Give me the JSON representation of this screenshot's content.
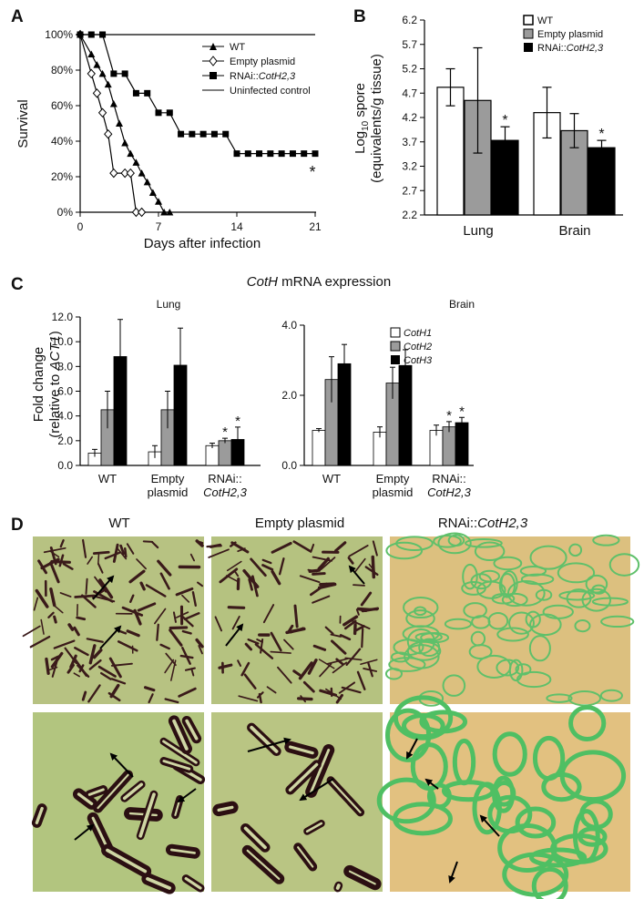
{
  "panels": {
    "a": "A",
    "b": "B",
    "c": "C",
    "d": "D"
  },
  "chart_data": [
    {
      "panel": "A",
      "type": "line",
      "xlabel": "Days after infection",
      "ylabel": "Survival",
      "xticks": [
        "0",
        "7",
        "14",
        "21"
      ],
      "yticks": [
        "0%",
        "20%",
        "40%",
        "60%",
        "80%",
        "100%"
      ],
      "xlim": [
        0,
        21
      ],
      "ylim": [
        0,
        100
      ],
      "annotation": "*",
      "series": [
        {
          "name": "WT",
          "marker": "triangle",
          "x": [
            0,
            1,
            1.5,
            2,
            2.5,
            3,
            3.5,
            4,
            4.5,
            5,
            5.5,
            6,
            6.5,
            7,
            7.5,
            8
          ],
          "y": [
            100,
            89,
            83,
            78,
            72,
            61,
            50,
            39,
            33,
            28,
            22,
            17,
            11,
            6,
            0,
            0
          ]
        },
        {
          "name": "Empty plasmid",
          "marker": "diamond",
          "x": [
            0,
            1,
            1.5,
            2,
            2.5,
            3,
            4,
            4.5,
            5,
            5.5
          ],
          "y": [
            100,
            78,
            67,
            56,
            44,
            22,
            22,
            22,
            0,
            0
          ]
        },
        {
          "name": "RNAi::CotH2,3",
          "marker": "square",
          "x": [
            0,
            1,
            2,
            3,
            4,
            5,
            6,
            7,
            8,
            9,
            10,
            11,
            12,
            13,
            14,
            15,
            16,
            17,
            18,
            19,
            20,
            21
          ],
          "y": [
            100,
            100,
            100,
            78,
            78,
            67,
            67,
            56,
            56,
            44,
            44,
            44,
            44,
            44,
            33,
            33,
            33,
            33,
            33,
            33,
            33,
            33
          ]
        },
        {
          "name": "Uninfected control",
          "marker": "none",
          "x": [
            0,
            21
          ],
          "y": [
            100,
            100
          ]
        }
      ]
    },
    {
      "panel": "B",
      "type": "bar",
      "ylabel_main": "Log",
      "ylabel_sub": "10",
      "ylabel_rest": " spore",
      "ylabel_line2": "(equivalents/g tissue)",
      "categories": [
        "Lung",
        "Brain"
      ],
      "yticks": [
        "2.2",
        "2.7",
        "3.2",
        "3.7",
        "4.2",
        "4.7",
        "5.2",
        "5.7",
        "6.2"
      ],
      "ylim": [
        2.2,
        6.2
      ],
      "series": [
        {
          "name": "WT",
          "color": "#ffffff",
          "values": [
            4.82,
            4.3
          ],
          "errors": [
            0.38,
            0.52
          ],
          "star": [
            false,
            false
          ]
        },
        {
          "name": "Empty plasmid",
          "color": "#9b9b9b",
          "values": [
            4.55,
            3.93
          ],
          "errors": [
            1.08,
            0.35
          ],
          "star": [
            false,
            false
          ]
        },
        {
          "name": "RNAi::CotH2,3",
          "color": "#000000",
          "values": [
            3.73,
            3.58
          ],
          "errors": [
            0.28,
            0.15
          ],
          "star": [
            true,
            true
          ]
        }
      ]
    },
    {
      "panel": "C",
      "type": "bar",
      "title_italic": "CotH",
      "title_rest": " mRNA expression",
      "ylabel": "Fold change",
      "ylabel_line2_a": "(relative to ",
      "ylabel_line2_italic": "ACT1",
      "ylabel_line2_b": ")",
      "legend_labels": [
        "CotH1",
        "CotH2",
        "CotH3"
      ],
      "legend_colors": [
        "#ffffff",
        "#9b9b9b",
        "#000000"
      ],
      "group_labels": [
        [
          "WT"
        ],
        [
          "Empty",
          "plasmid"
        ],
        [
          "RNAi::",
          "CotH2,3"
        ]
      ],
      "subcharts": [
        {
          "title": "Lung",
          "yticks": [
            "0.0",
            "2.0",
            "4.0",
            "6.0",
            "8.0",
            "10.0",
            "12.0"
          ],
          "ylim": [
            0,
            12
          ],
          "values": [
            [
              1.0,
              4.5,
              8.8
            ],
            [
              1.1,
              4.5,
              8.1
            ],
            [
              1.6,
              2.0,
              2.1
            ]
          ],
          "errors": [
            [
              0.3,
              1.5,
              3.0
            ],
            [
              0.5,
              1.5,
              3.0
            ],
            [
              0.2,
              0.2,
              1.0
            ]
          ],
          "stars": [
            [
              false,
              false,
              false
            ],
            [
              false,
              false,
              false
            ],
            [
              false,
              true,
              true
            ]
          ]
        },
        {
          "title": "Brain",
          "yticks": [
            "0.0",
            "2.0",
            "4.0"
          ],
          "ylim": [
            0,
            4
          ],
          "values": [
            [
              1.0,
              2.45,
              2.9
            ],
            [
              0.95,
              2.35,
              2.85
            ],
            [
              1.0,
              1.1,
              1.22
            ]
          ],
          "errors": [
            [
              0.05,
              0.65,
              0.55
            ],
            [
              0.15,
              0.45,
              0.45
            ],
            [
              0.15,
              0.15,
              0.15
            ]
          ],
          "stars": [
            [
              false,
              false,
              false
            ],
            [
              false,
              false,
              false
            ],
            [
              false,
              true,
              true
            ]
          ]
        }
      ]
    }
  ],
  "panel_a_legend": [
    "WT",
    "Empty plasmid",
    "RNAi::",
    "CotH2,3",
    "Uninfected control"
  ],
  "panel_b_legend": [
    "WT",
    "Empty plasmid",
    "RNAi::",
    "CotH2,3"
  ],
  "micrographs": {
    "col_wt": "WT",
    "col_empty": "Empty plasmid",
    "col_rnai_a": "RNAi::",
    "col_rnai_b": "CotH2,3"
  }
}
